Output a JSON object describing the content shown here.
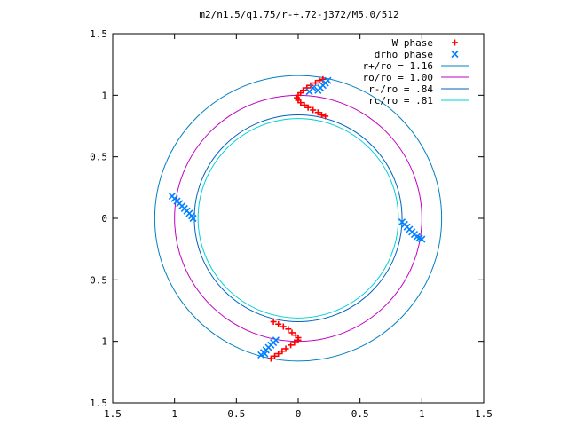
{
  "chart_data": {
    "type": "scatter",
    "title": "m2/n1.5/q1.75/r-+.72-j372/M5.0/512",
    "xlabel": "",
    "ylabel": "",
    "xlim": [
      -1.5,
      1.5
    ],
    "ylim": [
      -1.5,
      1.5
    ],
    "x_ticks": [
      -1.5,
      -1,
      -0.5,
      0,
      0.5,
      1,
      1.5
    ],
    "y_ticks": [
      -1.5,
      -1,
      -0.5,
      0,
      0.5,
      1,
      1.5
    ],
    "x_tick_labels": [
      "1.5",
      "1",
      "0.5",
      "0",
      "0.5",
      "1",
      "1.5"
    ],
    "y_tick_labels": [
      "1.5",
      "1",
      "0.5",
      "0",
      "0.5",
      "1",
      "1.5"
    ],
    "grid": false,
    "legend_position": "top-right",
    "series": [
      {
        "name": "W phase",
        "kind": "points",
        "marker": "plus",
        "color": "#ff0000",
        "points": [
          [
            0.1,
            1.08
          ],
          [
            0.07,
            1.06
          ],
          [
            0.04,
            1.04
          ],
          [
            0.02,
            1.02
          ],
          [
            0.0,
            1.0
          ],
          [
            -0.01,
            0.98
          ],
          [
            0.0,
            0.96
          ],
          [
            0.02,
            0.94
          ],
          [
            0.05,
            0.92
          ],
          [
            0.08,
            0.9
          ],
          [
            0.12,
            0.88
          ],
          [
            0.16,
            0.86
          ],
          [
            0.19,
            0.84
          ],
          [
            0.22,
            0.83
          ],
          [
            0.2,
            1.13
          ],
          [
            0.17,
            1.12
          ],
          [
            0.14,
            1.1
          ],
          [
            -0.2,
            -0.84
          ],
          [
            -0.16,
            -0.86
          ],
          [
            -0.12,
            -0.88
          ],
          [
            -0.08,
            -0.9
          ],
          [
            -0.05,
            -0.93
          ],
          [
            -0.02,
            -0.95
          ],
          [
            0.0,
            -0.97
          ],
          [
            0.0,
            -0.99
          ],
          [
            -0.03,
            -1.01
          ],
          [
            -0.06,
            -1.03
          ],
          [
            -0.1,
            -1.06
          ],
          [
            -0.13,
            -1.08
          ],
          [
            -0.16,
            -1.1
          ],
          [
            -0.19,
            -1.12
          ],
          [
            -0.22,
            -1.14
          ]
        ]
      },
      {
        "name": "drho phase",
        "kind": "points",
        "marker": "cross",
        "color": "#0080ff",
        "points": [
          [
            0.18,
            1.06
          ],
          [
            0.2,
            1.08
          ],
          [
            0.22,
            1.1
          ],
          [
            0.24,
            1.12
          ],
          [
            0.16,
            1.04
          ],
          [
            0.09,
            1.03
          ],
          [
            0.12,
            1.06
          ],
          [
            -1.02,
            0.18
          ],
          [
            -1.0,
            0.16
          ],
          [
            -0.98,
            0.14
          ],
          [
            -0.96,
            0.12
          ],
          [
            -0.94,
            0.1
          ],
          [
            -0.92,
            0.08
          ],
          [
            -0.9,
            0.06
          ],
          [
            -0.88,
            0.04
          ],
          [
            -0.86,
            0.02
          ],
          [
            -0.85,
            0.0
          ],
          [
            0.84,
            -0.03
          ],
          [
            0.86,
            -0.05
          ],
          [
            0.88,
            -0.07
          ],
          [
            0.9,
            -0.09
          ],
          [
            0.92,
            -0.11
          ],
          [
            0.94,
            -0.13
          ],
          [
            0.96,
            -0.15
          ],
          [
            0.98,
            -0.16
          ],
          [
            1.0,
            -0.17
          ],
          [
            -0.18,
            -0.99
          ],
          [
            -0.2,
            -1.01
          ],
          [
            -0.22,
            -1.03
          ],
          [
            -0.24,
            -1.05
          ],
          [
            -0.26,
            -1.07
          ],
          [
            -0.28,
            -1.09
          ],
          [
            -0.3,
            -1.11
          ],
          [
            -0.27,
            -1.1
          ]
        ]
      },
      {
        "name": "r+/ro = 1.16",
        "kind": "circle",
        "radius": 1.16,
        "color": "#0080c0"
      },
      {
        "name": "ro/ro = 1.00",
        "kind": "circle",
        "radius": 1.0,
        "color": "#c000c0"
      },
      {
        "name": "r-/ro = .84",
        "kind": "circle",
        "radius": 0.84,
        "color": "#0060c0"
      },
      {
        "name": "rc/ro = .81",
        "kind": "circle",
        "radius": 0.81,
        "color": "#00d0d0"
      }
    ]
  }
}
